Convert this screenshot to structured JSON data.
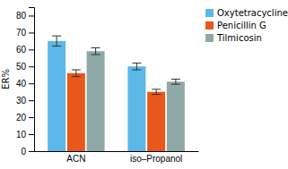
{
  "chart_data": {
    "type": "bar",
    "categories": [
      "ACN",
      "iso–Propanol"
    ],
    "series": [
      {
        "name": "Oxytetracycline",
        "color": "#5BB8E8",
        "values": [
          65,
          50
        ],
        "errors": [
          3.0,
          2.0
        ]
      },
      {
        "name": "Penicillin G",
        "color": "#E8581A",
        "values": [
          46,
          35
        ],
        "errors": [
          2.0,
          1.5
        ]
      },
      {
        "name": "Tilmicosin",
        "color": "#8FA8A8",
        "values": [
          59,
          41
        ],
        "errors": [
          2.0,
          1.5
        ]
      }
    ],
    "ylabel": "ER%",
    "ylim": [
      0,
      85
    ],
    "yticks": [
      0,
      10,
      20,
      30,
      40,
      50,
      60,
      70,
      80
    ],
    "grid": false,
    "legend": "upper right"
  }
}
